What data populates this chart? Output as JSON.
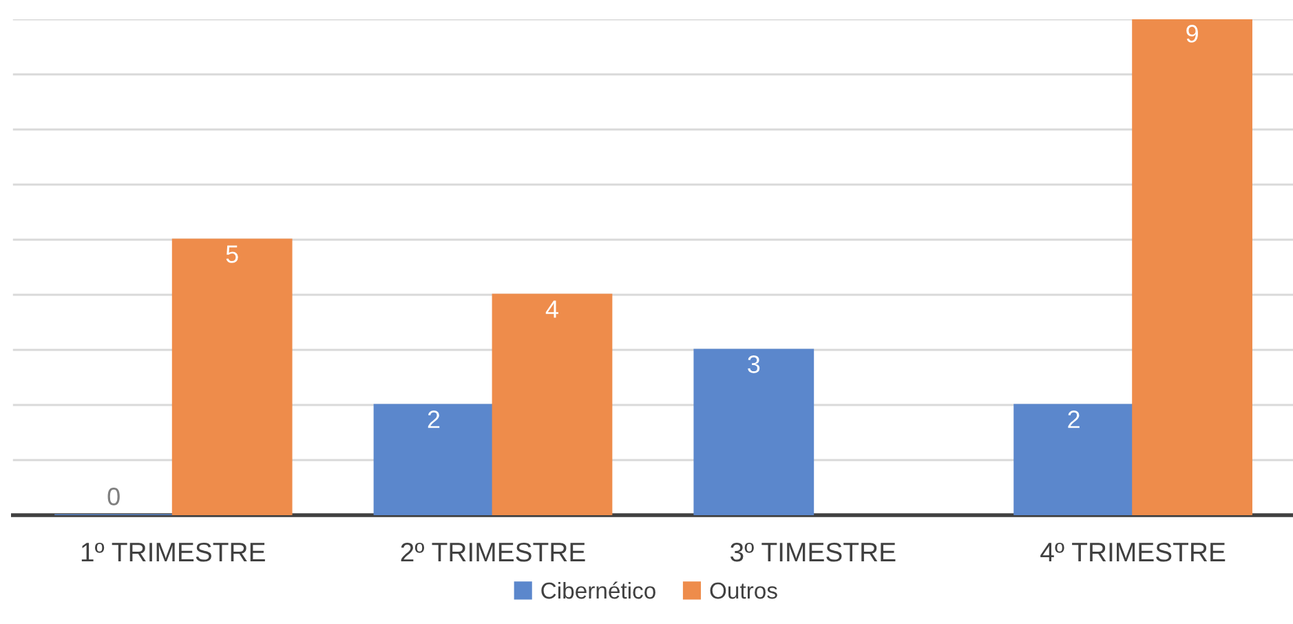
{
  "chart_data": {
    "type": "bar",
    "categories": [
      "1º TRIMESTRE",
      "2º TRIMESTRE",
      "3º TIMESTRE",
      "4º TRIMESTRE"
    ],
    "series": [
      {
        "name": "Cibernético",
        "color": "#5b87cc",
        "values": [
          0,
          2,
          3,
          2
        ]
      },
      {
        "name": "Outros",
        "color": "#ee8c4b",
        "values": [
          5,
          4,
          null,
          9
        ]
      }
    ],
    "ylim": [
      0,
      9
    ],
    "yticks": [
      {
        "value": 0,
        "label": null
      },
      {
        "value": 1,
        "label": null
      },
      {
        "value": 2,
        "label": null
      },
      {
        "value": 3,
        "label": null
      },
      {
        "value": 4,
        "label": null
      },
      {
        "value": 5,
        "label": null
      },
      {
        "value": 6,
        "label": null
      },
      {
        "value": 7,
        "label": null
      },
      {
        "value": 8,
        "label": null
      },
      {
        "value": 9,
        "label": null
      }
    ],
    "tick_labels": "x",
    "grid": "y",
    "data_labels": true,
    "legend": "bottom"
  }
}
